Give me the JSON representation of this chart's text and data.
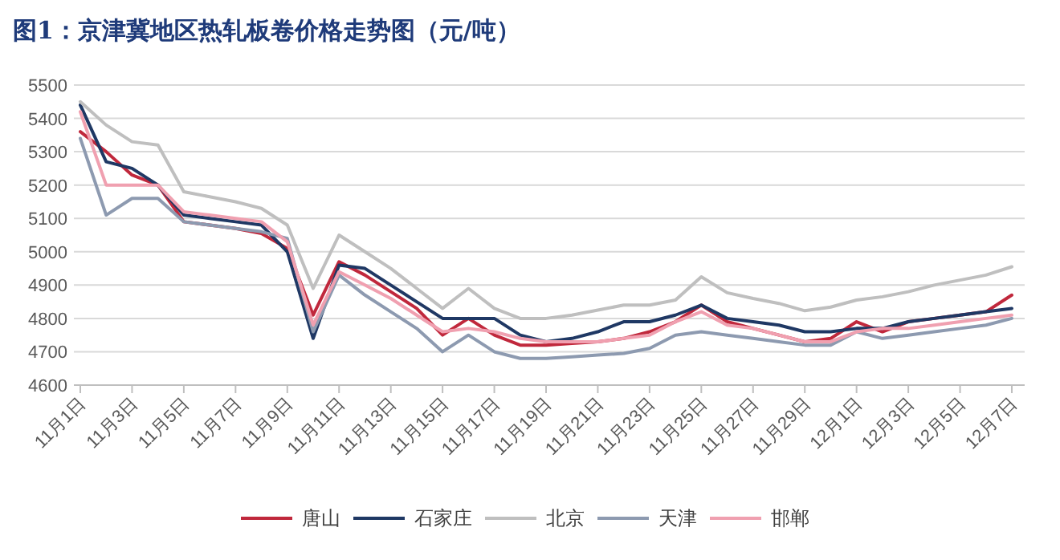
{
  "chart_data": {
    "type": "line",
    "title": "图1：京津冀地区热轧板卷价格走势图（元/吨）",
    "categories": [
      "11月1日",
      null,
      "11月3日",
      null,
      "11月5日",
      null,
      "11月7日",
      null,
      "11月9日",
      null,
      "11月11日",
      null,
      "11月13日",
      null,
      "11月15日",
      null,
      "11月17日",
      null,
      "11月19日",
      null,
      "11月21日",
      null,
      "11月23日",
      null,
      "11月25日",
      null,
      "11月27日",
      null,
      "11月29日",
      null,
      "12月1日",
      null,
      "12月3日",
      null,
      "12月5日",
      null,
      "12月7日"
    ],
    "series": [
      {
        "name": "唐山",
        "color": "#c0283c",
        "values": [
          5360,
          5300,
          5230,
          5200,
          5090,
          5080,
          5070,
          5055,
          5010,
          4810,
          4970,
          4930,
          4880,
          4830,
          4750,
          4800,
          4750,
          4720,
          4720,
          4725,
          4730,
          4740,
          4760,
          4790,
          4840,
          4790,
          4770,
          4750,
          4730,
          4740,
          4790,
          4760,
          4790,
          4800,
          4810,
          4820,
          4870
        ]
      },
      {
        "name": "石家庄",
        "color": "#1f3864",
        "values": [
          5440,
          5270,
          5250,
          5200,
          5110,
          5100,
          5090,
          5080,
          5000,
          4740,
          4960,
          4950,
          4900,
          4850,
          4800,
          4800,
          4800,
          4750,
          4730,
          4740,
          4760,
          4790,
          4790,
          4810,
          4840,
          4800,
          4790,
          4780,
          4760,
          4760,
          4770,
          4770,
          4790,
          4800,
          4810,
          4820,
          4830
        ]
      },
      {
        "name": "北京",
        "color": "#bfbfbf",
        "values": [
          5450,
          5380,
          5330,
          5320,
          5180,
          5165,
          5150,
          5130,
          5080,
          4890,
          5050,
          5000,
          4950,
          4890,
          4830,
          4890,
          4830,
          4800,
          4800,
          4810,
          4825,
          4840,
          4840,
          4855,
          4925,
          4877,
          4860,
          4845,
          4823,
          4834,
          4855,
          4865,
          4880,
          4900,
          4915,
          4930,
          4955
        ]
      },
      {
        "name": "天津",
        "color": "#8d9ab0",
        "values": [
          5340,
          5110,
          5160,
          5160,
          5090,
          5080,
          5070,
          5060,
          5040,
          4760,
          4930,
          4870,
          4820,
          4770,
          4700,
          4750,
          4700,
          4680,
          4680,
          4685,
          4690,
          4695,
          4710,
          4750,
          4760,
          4750,
          4740,
          4730,
          4720,
          4720,
          4760,
          4740,
          4750,
          4760,
          4770,
          4780,
          4800
        ]
      },
      {
        "name": "邯郸",
        "color": "#f0a0b0",
        "values": [
          5420,
          5200,
          5200,
          5200,
          5120,
          5110,
          5100,
          5090,
          5030,
          4780,
          4940,
          4900,
          4860,
          4810,
          4760,
          4770,
          4760,
          4740,
          4730,
          4730,
          4730,
          4740,
          4750,
          4790,
          4820,
          4780,
          4770,
          4750,
          4730,
          4730,
          4760,
          4770,
          4770,
          4780,
          4790,
          4800,
          4810
        ]
      }
    ],
    "ylim": [
      4600,
      5500
    ],
    "yticks": [
      4600,
      4700,
      4800,
      4900,
      5000,
      5100,
      5200,
      5300,
      5400,
      5500
    ],
    "grid": "y",
    "legend": "bottom"
  }
}
